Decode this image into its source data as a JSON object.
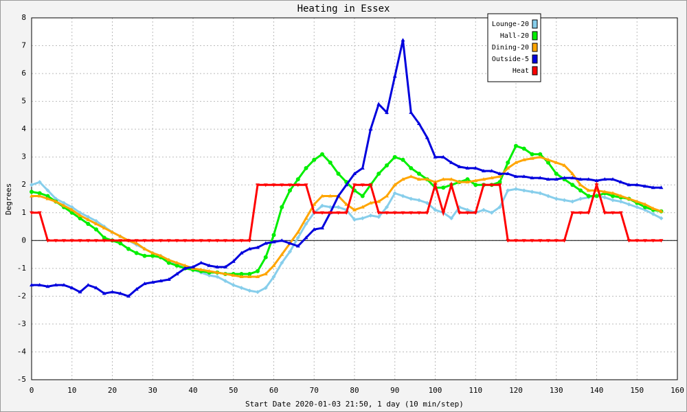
{
  "chart_data": {
    "type": "line",
    "title": "Heating in Essex",
    "xlabel": "Start Date 2020-01-03 21:50, 1 day (10 min/step)",
    "ylabel": "Degrees",
    "x": [
      0,
      2,
      4,
      6,
      8,
      10,
      12,
      14,
      16,
      18,
      20,
      22,
      24,
      26,
      28,
      30,
      32,
      34,
      36,
      38,
      40,
      42,
      44,
      46,
      48,
      50,
      52,
      54,
      56,
      58,
      60,
      62,
      64,
      66,
      68,
      70,
      72,
      74,
      76,
      78,
      80,
      82,
      84,
      86,
      88,
      90,
      92,
      94,
      96,
      98,
      100,
      102,
      104,
      106,
      108,
      110,
      112,
      114,
      116,
      118,
      120,
      122,
      124,
      126,
      128,
      130,
      132,
      134,
      136,
      138,
      140,
      142,
      144,
      146,
      148,
      150,
      152,
      154,
      156
    ],
    "series": [
      {
        "name": "Lounge-20",
        "color": "#87ceeb",
        "marker": "diamond",
        "values": [
          2.0,
          2.1,
          1.8,
          1.5,
          1.35,
          1.2,
          1.0,
          0.85,
          0.7,
          0.5,
          0.3,
          0.15,
          0.0,
          -0.15,
          -0.3,
          -0.45,
          -0.55,
          -0.7,
          -0.85,
          -0.95,
          -1.05,
          -1.15,
          -1.25,
          -1.3,
          -1.45,
          -1.6,
          -1.7,
          -1.8,
          -1.85,
          -1.7,
          -1.3,
          -0.8,
          -0.4,
          0.1,
          0.6,
          1.0,
          1.25,
          1.2,
          1.2,
          1.1,
          0.75,
          0.8,
          0.9,
          0.85,
          1.2,
          1.7,
          1.6,
          1.5,
          1.45,
          1.35,
          1.1,
          1.0,
          0.8,
          1.2,
          1.1,
          1.0,
          1.1,
          1.0,
          1.2,
          1.8,
          1.85,
          1.8,
          1.75,
          1.7,
          1.6,
          1.5,
          1.45,
          1.4,
          1.5,
          1.55,
          1.6,
          1.55,
          1.45,
          1.4,
          1.3,
          1.2,
          1.1,
          0.95,
          0.8
        ]
      },
      {
        "name": "Hall-20",
        "color": "#00ee00",
        "marker": "circle",
        "values": [
          1.75,
          1.7,
          1.6,
          1.4,
          1.2,
          1.0,
          0.8,
          0.6,
          0.4,
          0.1,
          0.0,
          -0.1,
          -0.3,
          -0.45,
          -0.55,
          -0.55,
          -0.6,
          -0.8,
          -0.9,
          -1.0,
          -1.05,
          -1.1,
          -1.15,
          -1.15,
          -1.2,
          -1.2,
          -1.2,
          -1.2,
          -1.1,
          -0.6,
          0.2,
          1.2,
          1.8,
          2.2,
          2.6,
          2.9,
          3.1,
          2.8,
          2.4,
          2.1,
          1.8,
          1.6,
          2.0,
          2.4,
          2.7,
          3.0,
          2.9,
          2.6,
          2.4,
          2.2,
          1.9,
          1.9,
          2.0,
          2.1,
          2.2,
          2.0,
          2.0,
          2.0,
          2.1,
          2.8,
          3.4,
          3.3,
          3.1,
          3.1,
          2.8,
          2.4,
          2.2,
          2.0,
          1.8,
          1.6,
          1.6,
          1.7,
          1.6,
          1.55,
          1.5,
          1.35,
          1.2,
          1.1,
          1.05
        ]
      },
      {
        "name": "Dining-20",
        "color": "#ffa500",
        "marker": "triangle",
        "values": [
          1.6,
          1.6,
          1.5,
          1.4,
          1.25,
          1.1,
          0.9,
          0.75,
          0.6,
          0.45,
          0.3,
          0.15,
          0.0,
          -0.1,
          -0.3,
          -0.45,
          -0.55,
          -0.7,
          -0.8,
          -0.9,
          -1.0,
          -1.05,
          -1.1,
          -1.15,
          -1.2,
          -1.25,
          -1.3,
          -1.3,
          -1.3,
          -1.2,
          -0.9,
          -0.5,
          -0.1,
          0.3,
          0.8,
          1.3,
          1.6,
          1.6,
          1.6,
          1.3,
          1.1,
          1.2,
          1.35,
          1.4,
          1.6,
          2.0,
          2.2,
          2.3,
          2.2,
          2.2,
          2.1,
          2.2,
          2.2,
          2.1,
          2.1,
          2.15,
          2.2,
          2.25,
          2.3,
          2.6,
          2.8,
          2.9,
          2.95,
          3.0,
          2.9,
          2.8,
          2.7,
          2.4,
          2.0,
          1.8,
          1.8,
          1.75,
          1.7,
          1.6,
          1.5,
          1.4,
          1.3,
          1.15,
          1.05
        ]
      },
      {
        "name": "Outside-5",
        "color": "#0000dd",
        "marker": "triangle",
        "values": [
          -1.6,
          -1.6,
          -1.65,
          -1.6,
          -1.6,
          -1.7,
          -1.85,
          -1.6,
          -1.7,
          -1.9,
          -1.85,
          -1.9,
          -2.0,
          -1.75,
          -1.55,
          -1.5,
          -1.45,
          -1.4,
          -1.2,
          -1.0,
          -0.95,
          -0.8,
          -0.9,
          -0.95,
          -0.95,
          -0.75,
          -0.45,
          -0.3,
          -0.25,
          -0.1,
          -0.05,
          0.0,
          -0.1,
          -0.2,
          0.1,
          0.4,
          0.45,
          1.0,
          1.6,
          2.0,
          2.4,
          2.6,
          4.0,
          4.9,
          4.6,
          5.9,
          7.2,
          4.6,
          4.2,
          3.7,
          3.0,
          3.0,
          2.8,
          2.65,
          2.6,
          2.6,
          2.5,
          2.5,
          2.4,
          2.4,
          2.3,
          2.3,
          2.25,
          2.25,
          2.2,
          2.2,
          2.25,
          2.25,
          2.2,
          2.2,
          2.15,
          2.2,
          2.2,
          2.1,
          2.0,
          2.0,
          1.95,
          1.9,
          1.9
        ]
      },
      {
        "name": "Heat",
        "color": "#ff0000",
        "marker": "down",
        "values": [
          1,
          1,
          0,
          0,
          0,
          0,
          0,
          0,
          0,
          0,
          0,
          0,
          0,
          0,
          0,
          0,
          0,
          0,
          0,
          0,
          0,
          0,
          0,
          0,
          0,
          0,
          0,
          0,
          2,
          2,
          2,
          2,
          2,
          2,
          2,
          1,
          1,
          1,
          1,
          1,
          2,
          2,
          2,
          1,
          1,
          1,
          1,
          1,
          1,
          1,
          2,
          1,
          2,
          1,
          1,
          1,
          2,
          2,
          2,
          0,
          0,
          0,
          0,
          0,
          0,
          0,
          0,
          1,
          1,
          1,
          2,
          1,
          1,
          1,
          0,
          0,
          0,
          0,
          0
        ]
      }
    ],
    "xlim": [
      0,
      160
    ],
    "xticks": [
      0,
      10,
      20,
      30,
      40,
      50,
      60,
      70,
      80,
      90,
      100,
      110,
      120,
      130,
      140,
      150,
      160
    ],
    "ylim": [
      -5,
      8
    ],
    "yticks": [
      -5,
      -4,
      -3,
      -2,
      -1,
      0,
      1,
      2,
      3,
      4,
      5,
      6,
      7,
      8
    ],
    "grid": true,
    "legend": "upper right"
  }
}
